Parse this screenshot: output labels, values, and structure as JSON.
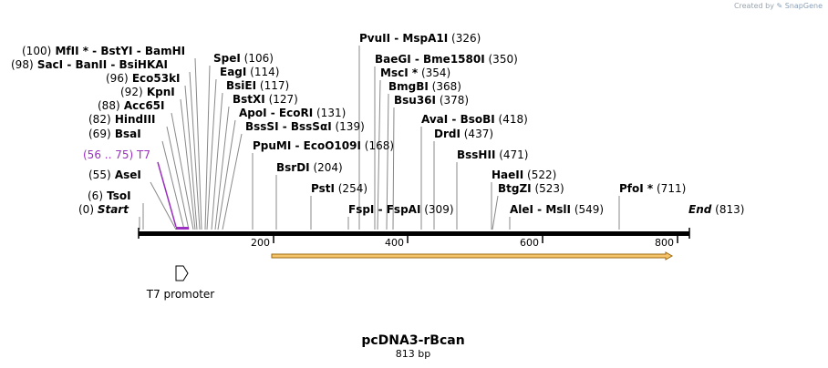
{
  "credit": {
    "prefix": "Created by",
    "brand": "SnapGene"
  },
  "plasmid": {
    "name": "pcDNA3-rBcan",
    "length_label": "813 bp"
  },
  "sites": [
    {
      "id": "start",
      "parts": [
        {
          "t": "(0)",
          "s": "num"
        },
        {
          "t": "  "
        },
        {
          "t": "Start",
          "s": "it"
        }
      ]
    },
    {
      "id": "tsoi",
      "parts": [
        {
          "t": "(6)",
          "s": "num"
        },
        {
          "t": "  TsoI",
          "s": "b"
        }
      ]
    },
    {
      "id": "asei",
      "parts": [
        {
          "t": "(55)",
          "s": "num"
        },
        {
          "t": "  AseI",
          "s": "b"
        }
      ]
    },
    {
      "id": "t7",
      "parts": [
        {
          "t": "(56 .. 75)",
          "s": "num"
        },
        {
          "t": "  T7"
        }
      ]
    },
    {
      "id": "bsai",
      "parts": [
        {
          "t": "(69)",
          "s": "num"
        },
        {
          "t": "  BsaI",
          "s": "b"
        }
      ]
    },
    {
      "id": "hindiii",
      "parts": [
        {
          "t": "(82)",
          "s": "num"
        },
        {
          "t": "  HindIII",
          "s": "b"
        }
      ]
    },
    {
      "id": "acc65i",
      "parts": [
        {
          "t": "(88)",
          "s": "num"
        },
        {
          "t": "  Acc65I",
          "s": "b"
        }
      ]
    },
    {
      "id": "kpni",
      "parts": [
        {
          "t": "(92)",
          "s": "num"
        },
        {
          "t": "  KpnI",
          "s": "b"
        }
      ]
    },
    {
      "id": "eco53ki",
      "parts": [
        {
          "t": "(96)",
          "s": "num"
        },
        {
          "t": "  Eco53kI",
          "s": "b"
        }
      ]
    },
    {
      "id": "saci",
      "parts": [
        {
          "t": "(98)",
          "s": "num"
        },
        {
          "t": "  SacI  - BanII  - BsiHKAI",
          "s": "b"
        }
      ]
    },
    {
      "id": "mlui",
      "parts": [
        {
          "t": "(100)",
          "s": "num"
        },
        {
          "t": "  MfII * - BstYI  - BamHI",
          "s": "b"
        }
      ]
    },
    {
      "id": "spei",
      "parts": [
        {
          "t": "SpeI",
          "s": "b"
        },
        {
          "t": "   (106)",
          "s": "num"
        }
      ]
    },
    {
      "id": "eagi",
      "parts": [
        {
          "t": "EagI",
          "s": "b"
        },
        {
          "t": "   (114)",
          "s": "num"
        }
      ]
    },
    {
      "id": "bsiei",
      "parts": [
        {
          "t": "BsiEI",
          "s": "b"
        },
        {
          "t": "   (117)",
          "s": "num"
        }
      ]
    },
    {
      "id": "bstxi",
      "parts": [
        {
          "t": "BstXI",
          "s": "b"
        },
        {
          "t": "   (127)",
          "s": "num"
        }
      ]
    },
    {
      "id": "apoi",
      "parts": [
        {
          "t": "ApoI  - EcoRI",
          "s": "b"
        },
        {
          "t": "   (131)",
          "s": "num"
        }
      ]
    },
    {
      "id": "bsssi",
      "parts": [
        {
          "t": "BssSI  - BssSαI",
          "s": "b"
        },
        {
          "t": "   (139)",
          "s": "num"
        }
      ]
    },
    {
      "id": "ppumi",
      "parts": [
        {
          "t": "PpuMI  - EcoO109I",
          "s": "b"
        },
        {
          "t": "   (168)",
          "s": "num"
        }
      ]
    },
    {
      "id": "bsrdi",
      "parts": [
        {
          "t": "BsrDI",
          "s": "b"
        },
        {
          "t": "   (204)",
          "s": "num"
        }
      ]
    },
    {
      "id": "psti",
      "parts": [
        {
          "t": "PstI",
          "s": "b"
        },
        {
          "t": "   (254)",
          "s": "num"
        }
      ]
    },
    {
      "id": "fspi",
      "parts": [
        {
          "t": "FspI  - FspAI",
          "s": "b"
        },
        {
          "t": "   (309)",
          "s": "num"
        }
      ]
    },
    {
      "id": "pvuii",
      "parts": [
        {
          "t": "PvuII  - MspA1I",
          "s": "b"
        },
        {
          "t": "   (326)",
          "s": "num"
        }
      ]
    },
    {
      "id": "baegi",
      "parts": [
        {
          "t": "BaeGI  - Bme1580I",
          "s": "b"
        },
        {
          "t": "   (350)",
          "s": "num"
        }
      ]
    },
    {
      "id": "msci",
      "parts": [
        {
          "t": "MscI *",
          "s": "b"
        },
        {
          "t": "   (354)",
          "s": "num"
        }
      ]
    },
    {
      "id": "bmgbi",
      "parts": [
        {
          "t": "BmgBI",
          "s": "b"
        },
        {
          "t": "   (368)",
          "s": "num"
        }
      ]
    },
    {
      "id": "bsu36i",
      "parts": [
        {
          "t": "Bsu36I",
          "s": "b"
        },
        {
          "t": "   (378)",
          "s": "num"
        }
      ]
    },
    {
      "id": "avai",
      "parts": [
        {
          "t": "AvaI  - BsoBI",
          "s": "b"
        },
        {
          "t": "   (418)",
          "s": "num"
        }
      ]
    },
    {
      "id": "drdi",
      "parts": [
        {
          "t": "DrdI",
          "s": "b"
        },
        {
          "t": "   (437)",
          "s": "num"
        }
      ]
    },
    {
      "id": "bsshii",
      "parts": [
        {
          "t": "BssHII",
          "s": "b"
        },
        {
          "t": "   (471)",
          "s": "num"
        }
      ]
    },
    {
      "id": "haeii",
      "parts": [
        {
          "t": "HaeII",
          "s": "b"
        },
        {
          "t": "   (522)",
          "s": "num"
        }
      ]
    },
    {
      "id": "btgzi",
      "parts": [
        {
          "t": "BtgZI",
          "s": "b"
        },
        {
          "t": "   (523)",
          "s": "num"
        }
      ]
    },
    {
      "id": "alei",
      "parts": [
        {
          "t": "AleI  - MslI",
          "s": "b"
        },
        {
          "t": "   (549)",
          "s": "num"
        }
      ]
    },
    {
      "id": "pfoi",
      "parts": [
        {
          "t": "PfoI *",
          "s": "b"
        },
        {
          "t": "   (711)",
          "s": "num"
        }
      ]
    },
    {
      "id": "end",
      "parts": [
        {
          "t": "End",
          "s": "it"
        },
        {
          "t": "   (813)",
          "s": "num"
        }
      ]
    }
  ],
  "ruler": {
    "ticks": [
      200,
      400,
      600,
      800
    ]
  },
  "feature": {
    "name": "T7 promoter"
  },
  "colors": {
    "backbone": "#000000",
    "orf_fill": "#f5c46a",
    "orf_stroke": "#9a6a12",
    "primer": "#9b30c0"
  }
}
